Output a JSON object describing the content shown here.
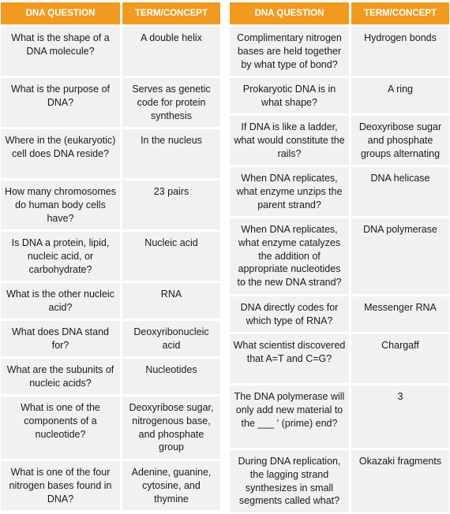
{
  "headers": {
    "question": "DNA QUESTION",
    "term": "TERM/CONCEPT"
  },
  "left_rows": [
    {
      "question": "What is the shape of a DNA molecule?",
      "term": "A double helix"
    },
    {
      "question": "What is the purpose of DNA?",
      "term": "Serves as genetic code for protein synthesis"
    },
    {
      "question": "Where in the (eukaryotic) cell does DNA reside?",
      "term": "In the nucleus"
    },
    {
      "question": "How many chromosomes do human body cells have?",
      "term": "23 pairs"
    },
    {
      "question": "Is DNA a protein, lipid, nucleic acid, or carbohydrate?",
      "term": "Nucleic acid"
    },
    {
      "question": "What is the other nucleic acid?",
      "term": "RNA"
    },
    {
      "question": "What does DNA stand for?",
      "term": "Deoxyribonucleic acid"
    },
    {
      "question": "What are the subunits of nucleic acids?",
      "term": "Nucleotides"
    },
    {
      "question": "What is one of the components of a nucleotide?",
      "term": "Deoxyribose sugar, nitrogenous base, and phosphate group"
    },
    {
      "question": "What is one of the four nitrogen bases found in DNA?",
      "term": "Adenine, guanine, cytosine, and thymine"
    }
  ],
  "right_rows": [
    {
      "question": "Complimentary nitrogen bases are held together by what type of bond?",
      "term": "Hydrogen bonds"
    },
    {
      "question": "Prokaryotic DNA is in what shape?",
      "term": "A ring"
    },
    {
      "question": "If DNA is like a ladder, what would constitute the rails?",
      "term": "Deoxyribose sugar and phosphate groups alternating"
    },
    {
      "question": "When DNA replicates, what enzyme unzips the parent strand?",
      "term": "DNA helicase"
    },
    {
      "question": "When DNA replicates, what enzyme catalyzes the addition of appropriate nucleotides to the new DNA strand?",
      "term": "DNA polymerase"
    },
    {
      "question": "DNA directly codes for which type of RNA?",
      "term": "Messenger RNA"
    },
    {
      "question": "What scientist discovered that A=T and C=G?",
      "term": "Chargaff"
    },
    {
      "question": "The DNA polymerase will only add new material to the ___ ' (prime) end?",
      "term": "3"
    },
    {
      "question": "During DNA replication, the lagging strand synthesizes in small segments called what?",
      "term": "Okazaki fragments"
    }
  ]
}
